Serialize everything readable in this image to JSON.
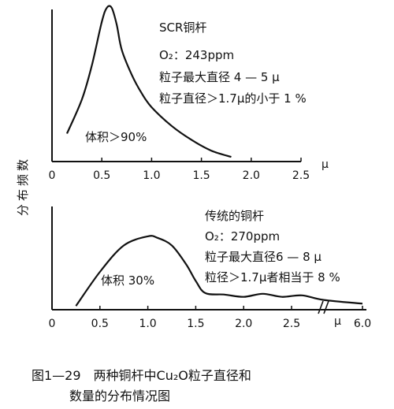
{
  "figure": {
    "y_label": "分布频数",
    "caption_line1": "图1—29　两种铜杆中Cu₂O粒子直径和",
    "caption_line2": "数量的分布情况图"
  },
  "chart_data": [
    {
      "type": "line",
      "xlim": [
        0,
        2.5
      ],
      "x_unit": "μ",
      "x_ticks": [
        "0",
        "0.5",
        "1.0",
        "1.5",
        "2.0",
        "2.5"
      ],
      "grid": false,
      "series": [
        {
          "x": [
            0.15,
            0.3,
            0.4,
            0.5,
            0.55,
            0.6,
            0.65,
            0.7,
            0.8,
            0.9,
            1.0,
            1.2,
            1.4,
            1.6,
            1.8
          ],
          "values": [
            0.18,
            0.4,
            0.62,
            0.9,
            0.99,
            0.99,
            0.88,
            0.72,
            0.56,
            0.44,
            0.35,
            0.23,
            0.14,
            0.07,
            0.03
          ]
        }
      ],
      "annotations": [
        "SCR铜杆",
        "O₂：243ppm",
        "粒子最大直径 4 — 5 μ",
        "粒子直径＞1.7μ的小于 1 %",
        "体积＞90%"
      ]
    },
    {
      "type": "line",
      "xlim": [
        0,
        6.0
      ],
      "x_unit": "μ",
      "x_ticks": [
        "0",
        "0.5",
        "1.0",
        "1.5",
        "2.0",
        "2.5",
        "6.0"
      ],
      "axis_break": true,
      "grid": false,
      "series": [
        {
          "x": [
            0.25,
            0.5,
            0.75,
            1.0,
            1.1,
            1.25,
            1.4,
            1.5,
            1.6,
            1.8,
            2.0,
            2.2,
            2.4,
            2.6,
            2.8,
            6.0
          ],
          "values": [
            0.05,
            0.5,
            0.85,
            0.97,
            0.95,
            0.85,
            0.6,
            0.38,
            0.22,
            0.2,
            0.17,
            0.21,
            0.17,
            0.19,
            0.13,
            0.08
          ]
        }
      ],
      "annotations": [
        "传统的铜杆",
        "O₂：270ppm",
        "粒子最大直径6 — 8 μ",
        "粒径＞1.7μ者相当于 8 %",
        "体积 30%"
      ]
    }
  ]
}
